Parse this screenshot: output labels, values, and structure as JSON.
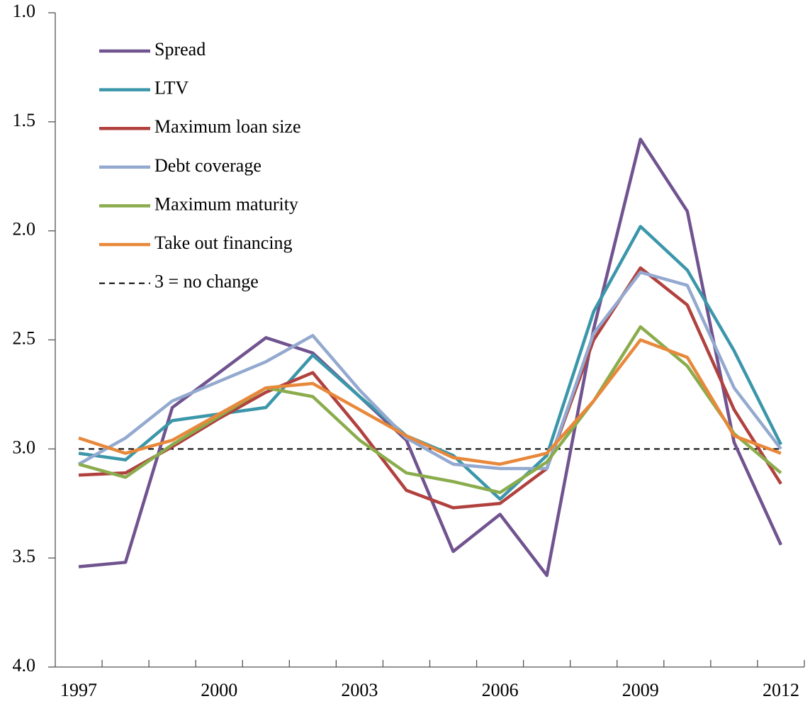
{
  "chart_data": {
    "type": "line",
    "categories": [
      "1997",
      null,
      null,
      "2000",
      null,
      null,
      "2003",
      null,
      null,
      "2006",
      null,
      null,
      "2009",
      null,
      null,
      "2012"
    ],
    "series": [
      {
        "name": "Spread",
        "color": "#70538f",
        "values": [
          3.54,
          3.52,
          2.81,
          2.65,
          2.49,
          2.56,
          2.76,
          2.96,
          3.47,
          3.3,
          3.58,
          2.45,
          1.58,
          1.91,
          2.97,
          3.44
        ]
      },
      {
        "name": "LTV",
        "color": "#3b96aa",
        "values": [
          3.02,
          3.05,
          2.87,
          2.84,
          2.81,
          2.57,
          2.76,
          2.94,
          3.03,
          3.23,
          3.03,
          2.37,
          1.98,
          2.18,
          2.55,
          2.98
        ]
      },
      {
        "name": "Maximum loan size",
        "color": "#b0413e",
        "values": [
          3.12,
          3.11,
          2.99,
          2.86,
          2.74,
          2.65,
          2.91,
          3.19,
          3.27,
          3.25,
          3.09,
          2.5,
          2.17,
          2.34,
          2.82,
          3.16
        ]
      },
      {
        "name": "Debt coverage",
        "color": "#93a9cf",
        "values": [
          3.07,
          2.95,
          2.78,
          2.69,
          2.6,
          2.48,
          2.73,
          2.95,
          3.07,
          3.09,
          3.09,
          2.47,
          2.19,
          2.25,
          2.72,
          3.0
        ]
      },
      {
        "name": "Maximum maturity",
        "color": "#8aac4c",
        "values": [
          3.07,
          3.13,
          2.98,
          2.85,
          2.72,
          2.76,
          2.96,
          3.11,
          3.15,
          3.2,
          3.06,
          2.78,
          2.44,
          2.62,
          2.93,
          3.11
        ]
      },
      {
        "name": "Take out financing",
        "color": "#e8883a",
        "values": [
          2.95,
          3.02,
          2.96,
          2.84,
          2.72,
          2.7,
          2.82,
          2.94,
          3.04,
          3.07,
          3.02,
          2.78,
          2.5,
          2.58,
          2.94,
          3.02
        ]
      }
    ],
    "reference_line": {
      "value": 3,
      "label": "3 = no change",
      "color": "#000000"
    },
    "ylim": [
      4,
      1
    ],
    "yticks": [
      {
        "value": 1,
        "label": "1.0"
      },
      1.5,
      {
        "value": 2,
        "label": "2.0"
      },
      2.5,
      {
        "value": 3,
        "label": "3.0"
      },
      3.5,
      {
        "value": 4,
        "label": "4.0"
      }
    ],
    "grid": false,
    "legend": "upper left"
  }
}
